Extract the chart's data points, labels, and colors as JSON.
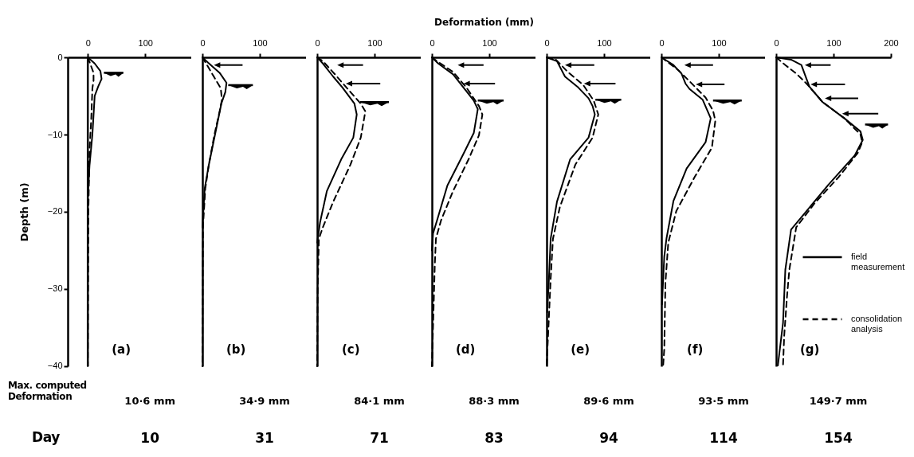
{
  "chart_data": [
    {
      "type": "line",
      "ylabel": "Depth (m)",
      "xlim": [
        -35,
        200
      ],
      "xticks": [
        0,
        100
      ],
      "ylim": [
        -40,
        0
      ],
      "yticks": [
        0,
        -10,
        -20,
        -30,
        -40
      ],
      "grid": false,
      "ref_lines": [
        {
          "axis": "x",
          "value": 0
        }
      ],
      "annotations": [
        "(a)",
        "10·6 mm",
        "10",
        "Max. computed Deformation",
        "Day"
      ],
      "series": [
        {
          "color": "#000000",
          "line_style": "solid",
          "x": [
            0,
            12,
            22,
            24,
            18,
            12,
            8,
            3,
            0
          ],
          "values": [
            0,
            -0.8,
            -1.8,
            -2.8,
            -3.8,
            -5,
            -10,
            -14,
            -18
          ]
        },
        {
          "color": "#000000",
          "line_style": "dashed",
          "x": [
            0,
            5,
            10,
            10,
            8,
            6,
            3,
            1,
            0
          ],
          "values": [
            0,
            -1,
            -2,
            -3,
            -4,
            -8,
            -12,
            -20,
            -40
          ]
        }
      ]
    },
    {
      "type": "line",
      "xlim": [
        0,
        200
      ],
      "xticks": [
        0,
        100
      ],
      "ylim": [
        -40,
        0
      ],
      "tick_labels": "x",
      "grid": false,
      "annotations": [
        "(b)",
        "34·9 mm",
        "31"
      ],
      "series": [
        {
          "color": "#000000",
          "line_style": "solid",
          "x": [
            0,
            10,
            30,
            42,
            40,
            33,
            22,
            11,
            4,
            0
          ],
          "values": [
            0,
            -0.7,
            -2,
            -3.3,
            -4.5,
            -6,
            -10,
            -14,
            -17,
            -22
          ]
        },
        {
          "color": "#000000",
          "line_style": "dashed",
          "x": [
            0,
            8,
            20,
            32,
            34,
            30,
            21,
            11,
            5,
            1,
            0
          ],
          "values": [
            0,
            -1,
            -2.5,
            -4,
            -5.5,
            -7,
            -10,
            -14,
            -17,
            -22,
            -40
          ]
        }
      ]
    },
    {
      "type": "line",
      "xlim": [
        0,
        200
      ],
      "xticks": [
        0,
        100
      ],
      "ylim": [
        -40,
        0
      ],
      "tick_labels": "x",
      "grid": false,
      "annotations": [
        "(c)",
        "84·1 mm",
        "71"
      ],
      "series": [
        {
          "color": "#000000",
          "line_style": "solid",
          "x": [
            0,
            10,
            28,
            44,
            65,
            69,
            63,
            42,
            17,
            5,
            0
          ],
          "values": [
            0,
            -0.8,
            -2.5,
            -3.9,
            -6,
            -7.4,
            -10.4,
            -13.2,
            -17.3,
            -21.4,
            -24
          ]
        },
        {
          "color": "#000000",
          "line_style": "dashed",
          "x": [
            0,
            10,
            31,
            51,
            76,
            84,
            76,
            58,
            28,
            10,
            3,
            1,
            0
          ],
          "values": [
            0,
            -0.5,
            -2.2,
            -3.9,
            -6,
            -7,
            -10.4,
            -13.9,
            -18.7,
            -22,
            -23.5,
            -30,
            -40
          ]
        }
      ]
    },
    {
      "type": "line",
      "xlabel": "Deformation (mm)",
      "xlim": [
        0,
        200
      ],
      "xticks": [
        0,
        100
      ],
      "ylim": [
        -40,
        0
      ],
      "tick_labels": "x",
      "grid": false,
      "annotations": [
        "(d)",
        "88·3 mm",
        "83"
      ],
      "series": [
        {
          "color": "#000000",
          "line_style": "solid",
          "x": [
            0,
            11,
            37,
            55,
            73,
            80,
            73,
            55,
            27,
            9,
            2,
            0
          ],
          "values": [
            0,
            -0.8,
            -2.2,
            -3.9,
            -5.6,
            -6.7,
            -9.8,
            -12.5,
            -16.6,
            -21.1,
            -22.8,
            -25
          ]
        },
        {
          "color": "#000000",
          "line_style": "dashed",
          "x": [
            0,
            9,
            37,
            60,
            82,
            88,
            82,
            64,
            37,
            16,
            7,
            5,
            0
          ],
          "values": [
            0,
            -0.5,
            -1.9,
            -3.9,
            -6.3,
            -7.4,
            -10.1,
            -13.2,
            -17.3,
            -21.1,
            -23.5,
            -27,
            -40
          ]
        }
      ]
    },
    {
      "type": "line",
      "xlim": [
        0,
        200
      ],
      "xticks": [
        0,
        100
      ],
      "ylim": [
        -40,
        0
      ],
      "tick_labels": "x",
      "grid": false,
      "annotations": [
        "(e)",
        "89·6 mm",
        "94"
      ],
      "series": [
        {
          "color": "#000000",
          "line_style": "solid",
          "x": [
            0,
            18,
            32,
            55,
            73,
            80,
            84,
            73,
            41,
            18,
            7,
            4,
            1
          ],
          "values": [
            0,
            -0.5,
            -2.5,
            -3.9,
            -5.3,
            -6.3,
            -7.4,
            -10.4,
            -13.2,
            -18.7,
            -23.5,
            -28.7,
            -33
          ]
        },
        {
          "color": "#000000",
          "line_style": "dashed",
          "x": [
            0,
            16,
            37,
            64,
            82,
            90,
            80,
            50,
            23,
            11,
            7,
            0
          ],
          "values": [
            0,
            -0.3,
            -1.9,
            -3.6,
            -5.6,
            -7.4,
            -10.4,
            -13.9,
            -19.4,
            -23.5,
            -28.7,
            -40
          ]
        }
      ]
    },
    {
      "type": "line",
      "xlim": [
        0,
        200
      ],
      "xticks": [
        0,
        100
      ],
      "ylim": [
        -40,
        0
      ],
      "tick_labels": "x",
      "grid": false,
      "annotations": [
        "(f)",
        "93·5 mm",
        "114"
      ],
      "series": [
        {
          "color": "#000000",
          "line_style": "solid",
          "x": [
            0,
            21,
            35,
            42,
            49,
            72,
            86,
            77,
            44,
            21,
            9,
            5,
            1
          ],
          "values": [
            0,
            -1,
            -2.1,
            -3.4,
            -4.1,
            -5.5,
            -7.9,
            -11,
            -14.4,
            -18.6,
            -23.4,
            -25.8,
            -32
          ]
        },
        {
          "color": "#000000",
          "line_style": "dashed",
          "x": [
            0,
            30,
            49,
            77,
            90,
            94,
            88,
            58,
            26,
            12,
            7,
            5,
            3
          ],
          "values": [
            0,
            -1.7,
            -3.1,
            -5.2,
            -6.9,
            -8.2,
            -11.7,
            -15.5,
            -19.9,
            -24,
            -29.2,
            -37.8,
            -40
          ]
        }
      ]
    },
    {
      "type": "line",
      "xlim": [
        0,
        200
      ],
      "xticks": [
        0,
        100,
        200
      ],
      "ylim": [
        -40,
        0
      ],
      "tick_labels": "x",
      "grid": false,
      "legend": "bottom right",
      "annotations": [
        "(g)",
        "149·7 mm",
        "154"
      ],
      "series": [
        {
          "name": "field measurement",
          "color": "#000000",
          "line_style": "solid",
          "x": [
            0,
            26,
            44,
            51,
            58,
            81,
            119,
            147,
            151,
            137,
            91,
            53,
            26,
            16,
            12,
            3
          ],
          "values": [
            0,
            -0.3,
            -1,
            -2.4,
            -3.8,
            -5.8,
            -7.9,
            -9.6,
            -10.7,
            -12.7,
            -16.5,
            -19.9,
            -22.3,
            -27.5,
            -34.4,
            -39.9
          ]
        },
        {
          "name": "consolidation analysis",
          "color": "#000000",
          "line_style": "dashed",
          "x": [
            0,
            16,
            35,
            53,
            81,
            119,
            147,
            150,
            142,
            109,
            67,
            35,
            23,
            19,
            14,
            12
          ],
          "values": [
            0,
            -1,
            -2.1,
            -3.4,
            -5.8,
            -7.9,
            -10,
            -11,
            -12.4,
            -15.5,
            -18.9,
            -22,
            -27.5,
            -30.9,
            -36.1,
            -39.9
          ]
        }
      ]
    }
  ]
}
